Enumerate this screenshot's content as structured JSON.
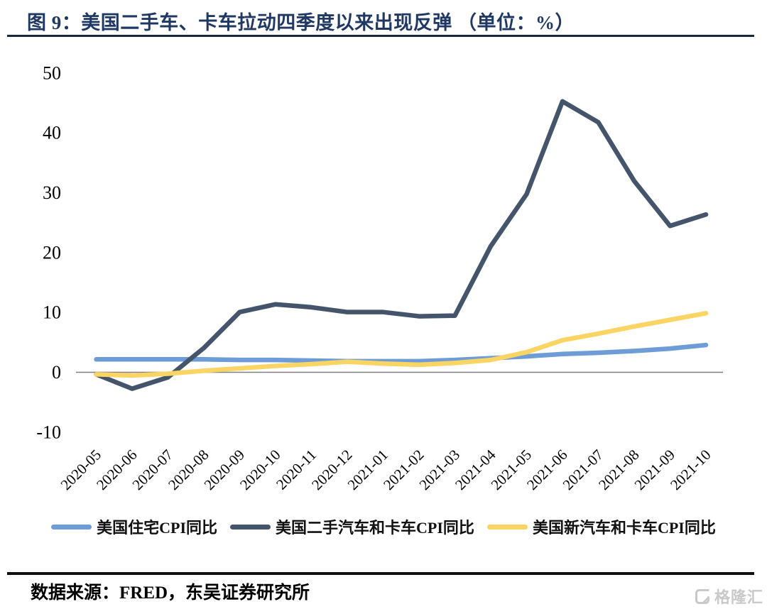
{
  "header": {
    "title": "图 9：美国二手车、卡车拉动四季度以来出现反弹 （单位：%）"
  },
  "chart_data": {
    "type": "line",
    "title": "美国二手车、卡车拉动四季度以来出现反弹",
    "unit": "%",
    "categories": [
      "2020-05",
      "2020-06",
      "2020-07",
      "2020-08",
      "2020-09",
      "2020-10",
      "2020-11",
      "2020-12",
      "2021-01",
      "2021-02",
      "2021-03",
      "2021-04",
      "2021-05",
      "2021-06",
      "2021-07",
      "2021-08",
      "2021-09",
      "2021-10"
    ],
    "series": [
      {
        "name": "美国住宅CPI同比",
        "color": "#6D9CD6",
        "values": [
          2.1,
          2.1,
          2.1,
          2.1,
          2.0,
          2.0,
          1.9,
          1.8,
          1.8,
          1.8,
          2.0,
          2.3,
          2.6,
          3.0,
          3.2,
          3.5,
          3.9,
          4.5
        ]
      },
      {
        "name": "美国二手汽车和卡车CPI同比",
        "color": "#44546A",
        "values": [
          -0.4,
          -2.8,
          -0.9,
          4.0,
          10.0,
          11.3,
          10.8,
          10.0,
          10.0,
          9.3,
          9.4,
          21.0,
          29.7,
          45.2,
          41.7,
          31.9,
          24.4,
          26.3
        ]
      },
      {
        "name": "美国新汽车和卡车CPI同比",
        "color": "#FAD564",
        "values": [
          -0.4,
          -0.6,
          -0.3,
          0.2,
          0.6,
          1.0,
          1.3,
          1.7,
          1.4,
          1.2,
          1.5,
          2.0,
          3.3,
          5.3,
          6.4,
          7.6,
          8.7,
          9.8
        ]
      }
    ],
    "ylim": [
      -10,
      50
    ],
    "yticks": [
      50,
      40,
      30,
      20,
      10,
      0,
      -10
    ],
    "grid": false,
    "zero_line": true,
    "legend_position": "bottom"
  },
  "footer": {
    "source": "数据来源：FRED，东吴证券研究所"
  },
  "watermark": {
    "text": "格隆汇"
  }
}
